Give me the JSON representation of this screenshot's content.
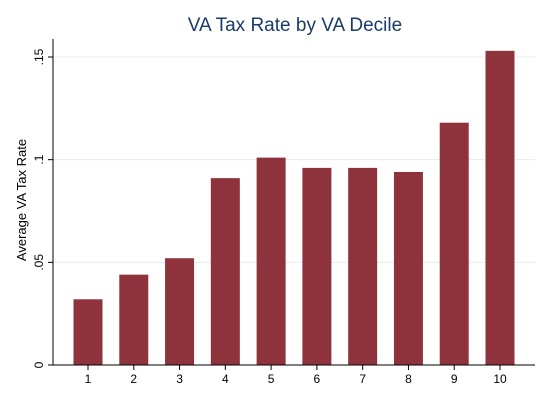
{
  "chart_data": {
    "type": "bar",
    "title": "VA Tax Rate by VA Decile",
    "xlabel": "",
    "ylabel": "Average VA Tax Rate",
    "categories": [
      "1",
      "2",
      "3",
      "4",
      "5",
      "6",
      "7",
      "8",
      "9",
      "10"
    ],
    "values": [
      0.032,
      0.044,
      0.052,
      0.091,
      0.101,
      0.096,
      0.096,
      0.094,
      0.118,
      0.153
    ],
    "ylim": [
      0,
      0.15
    ],
    "yticks": [
      0,
      0.05,
      0.1,
      0.15
    ],
    "ytick_labels": [
      "0",
      ".05",
      ".1",
      ".15"
    ],
    "grid": true,
    "bar_color": "#8e333c"
  }
}
